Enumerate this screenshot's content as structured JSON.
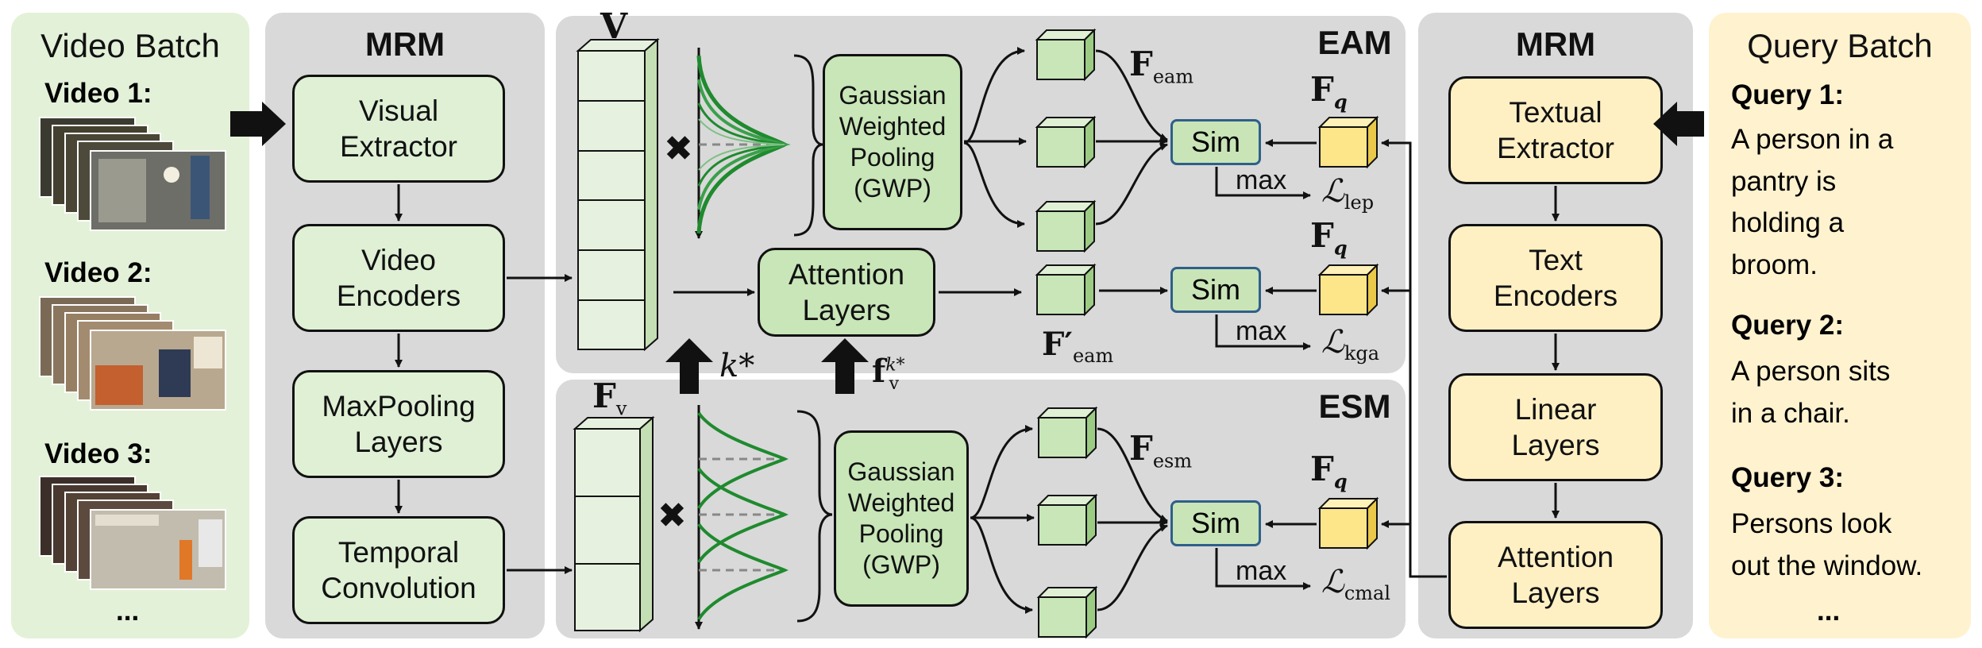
{
  "video_batch": {
    "title": "Video Batch",
    "videos": [
      "Video 1:",
      "Video 2:",
      "Video 3:"
    ],
    "ellipsis": "..."
  },
  "mrm_left": {
    "title": "MRM",
    "boxes": [
      "Visual\nExtractor",
      "Video\nEncoders",
      "MaxPooling\nLayers",
      "Temporal\nConvolution"
    ]
  },
  "eam": {
    "title": "EAM",
    "feature_label": "V",
    "gwp": "Gaussian\nWeighted\nPooling\n(GWP)",
    "attention": "Attention\nLayers",
    "f_eam": "F",
    "f_eam_sub": "eam",
    "f_eam_prime": "F′",
    "f_eam_prime_sub": "eam",
    "sim": "Sim",
    "max": "max",
    "loss_lep": "ℒ",
    "loss_lep_sub": "lep",
    "loss_kga": "ℒ",
    "loss_kga_sub": "kga",
    "fq": "F",
    "fq_sub": "q"
  },
  "esm": {
    "title": "ESM",
    "feature_label": "F",
    "feature_sub": "v",
    "gwp": "Gaussian\nWeighted\nPooling\n(GWP)",
    "f_esm": "F",
    "f_esm_sub": "esm",
    "sim": "Sim",
    "max": "max",
    "loss_cmal": "ℒ",
    "loss_cmal_sub": "cmal",
    "fq": "F",
    "fq_sub": "q"
  },
  "arrows_up": {
    "k_star": "k*",
    "fv_k": "f",
    "fv_k_sup": "k*",
    "fv_k_sub": "v"
  },
  "mrm_right": {
    "title": "MRM",
    "boxes": [
      "Textual\nExtractor",
      "Text\nEncoders",
      "Linear\nLayers",
      "Attention\nLayers"
    ]
  },
  "query_batch": {
    "title": "Query Batch",
    "queries": [
      {
        "label": "Query 1:",
        "text": "A person in a\npantry is\nholding a\nbroom."
      },
      {
        "label": "Query 2:",
        "text": "A person sits\nin a chair."
      },
      {
        "label": "Query 3:",
        "text": "Persons look\nout the window."
      }
    ],
    "ellipsis": "..."
  },
  "colors": {
    "video_panel": "#e3f1d8",
    "mrm_panel": "#d9d9d9",
    "query_panel": "#fff2cf",
    "gaussian_green": "#1f8a2e",
    "cube_green": "#c8e6b8",
    "cube_yellow": "#fde58a"
  }
}
